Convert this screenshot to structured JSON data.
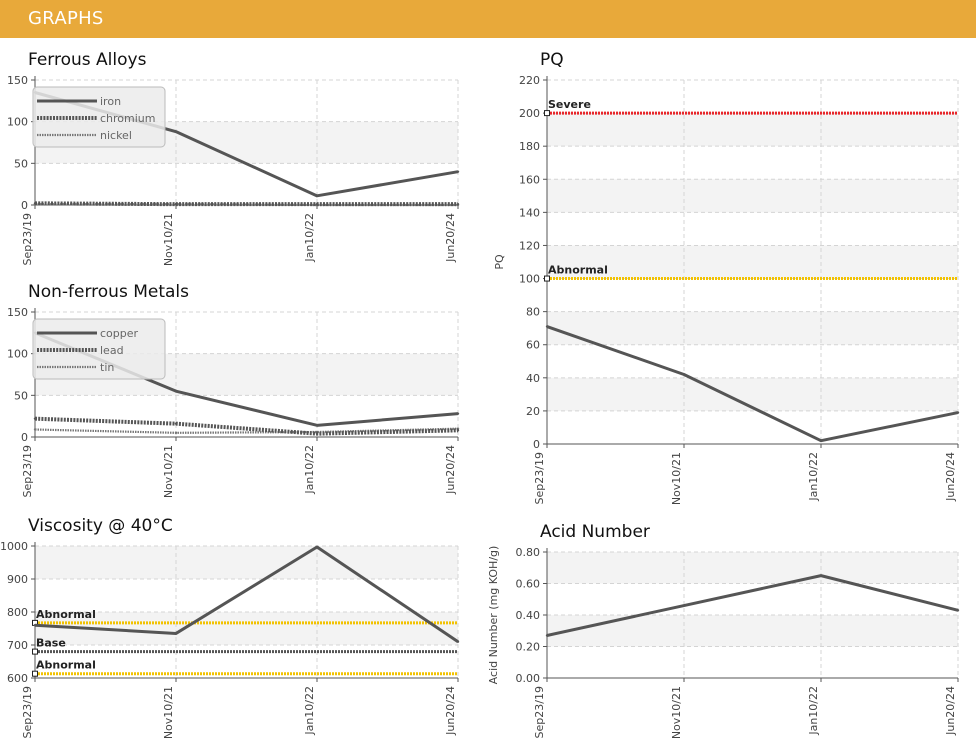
{
  "header": {
    "title": "GRAPHS"
  },
  "chart_data": [
    {
      "type": "line",
      "title": "Ferrous Alloys",
      "ylabel": "",
      "categories": [
        "Sep23/19",
        "Nov10/21",
        "Jan10/22",
        "Jun20/24"
      ],
      "ylim": [
        0,
        150
      ],
      "yticks": [
        0,
        50,
        100,
        150
      ],
      "grid": true,
      "legend_position": "top-left",
      "series": [
        {
          "name": "iron",
          "values": [
            135,
            88,
            11,
            40
          ],
          "color": "#555555",
          "style": "solid"
        },
        {
          "name": "chromium",
          "values": [
            2,
            1,
            1,
            1
          ],
          "color": "#555555",
          "style": "dotted-thick"
        },
        {
          "name": "nickel",
          "values": [
            1,
            1,
            0,
            0
          ],
          "color": "#777777",
          "style": "dotted-thin"
        }
      ],
      "thresholds": []
    },
    {
      "type": "line",
      "title": "Non-ferrous Metals",
      "ylabel": "",
      "categories": [
        "Sep23/19",
        "Nov10/21",
        "Jan10/22",
        "Jun20/24"
      ],
      "ylim": [
        0,
        150
      ],
      "yticks": [
        0,
        50,
        100,
        150
      ],
      "grid": true,
      "legend_position": "top-left",
      "series": [
        {
          "name": "copper",
          "values": [
            125,
            55,
            14,
            28
          ],
          "color": "#555555",
          "style": "solid"
        },
        {
          "name": "lead",
          "values": [
            22,
            16,
            4,
            8
          ],
          "color": "#555555",
          "style": "dotted-thick"
        },
        {
          "name": "tin",
          "values": [
            9,
            5,
            6,
            10
          ],
          "color": "#777777",
          "style": "dotted-thin"
        }
      ],
      "thresholds": []
    },
    {
      "type": "line",
      "title": "Viscosity @ 40°C",
      "ylabel": "",
      "categories": [
        "Sep23/19",
        "Nov10/21",
        "Jan10/22",
        "Jun20/24"
      ],
      "ylim": [
        600,
        1000
      ],
      "yticks": [
        600,
        700,
        800,
        900,
        1000
      ],
      "grid": true,
      "legend_position": "",
      "series": [
        {
          "name": "",
          "values": [
            760,
            735,
            997,
            710
          ],
          "color": "#555555",
          "style": "solid"
        }
      ],
      "thresholds": [
        {
          "label": "Abnormal",
          "value": 767,
          "color": "#f2c200"
        },
        {
          "label": "Base",
          "value": 680,
          "color": "#555555"
        },
        {
          "label": "Abnormal",
          "value": 613,
          "color": "#f2c200"
        }
      ]
    },
    {
      "type": "line",
      "title": "PQ",
      "ylabel": "PQ",
      "categories": [
        "Sep23/19",
        "Nov10/21",
        "Jan10/22",
        "Jun20/24"
      ],
      "ylim": [
        0,
        220
      ],
      "yticks": [
        0,
        20,
        40,
        60,
        80,
        100,
        120,
        140,
        160,
        180,
        200,
        220
      ],
      "grid": true,
      "legend_position": "",
      "series": [
        {
          "name": "",
          "values": [
            71,
            42,
            2,
            19
          ],
          "color": "#555555",
          "style": "solid"
        }
      ],
      "thresholds": [
        {
          "label": "Severe",
          "value": 200,
          "color": "#e8262a"
        },
        {
          "label": "Abnormal",
          "value": 100,
          "color": "#f2c200"
        }
      ]
    },
    {
      "type": "line",
      "title": "Acid Number",
      "ylabel": "Acid Number (mg KOH/g)",
      "categories": [
        "Sep23/19",
        "Nov10/21",
        "Jan10/22",
        "Jun20/24"
      ],
      "ylim": [
        0,
        0.8
      ],
      "yticks": [
        "0.00",
        "0.20",
        "0.40",
        "0.60",
        "0.80"
      ],
      "grid": true,
      "legend_position": "",
      "series": [
        {
          "name": "",
          "values": [
            0.27,
            0.46,
            0.65,
            0.43
          ],
          "color": "#555555",
          "style": "solid"
        }
      ],
      "thresholds": []
    }
  ]
}
